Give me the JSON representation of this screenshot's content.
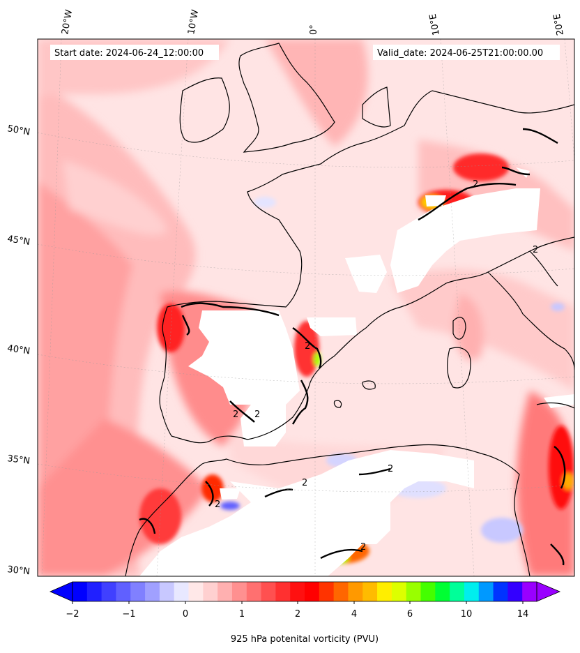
{
  "header": {
    "start_date": "Start date: 2024-06-24_12:00:00",
    "valid_date": "Valid_date: 2024-06-25T21:00:00.00"
  },
  "map": {
    "lon_labels": [
      "20°W",
      "10°W",
      "0°",
      "10°E",
      "20°E"
    ],
    "lat_labels": [
      "50°N",
      "45°N",
      "40°N",
      "35°N",
      "30°N"
    ],
    "contour_label": "2"
  },
  "colorbar": {
    "tick_labels": [
      "−2",
      "−1",
      "0",
      "1",
      "2",
      "4",
      "6",
      "10",
      "14"
    ],
    "title": "925 hPa potenital vorticity (PVU)",
    "colors": [
      "#0000ff",
      "#2020ff",
      "#4040ff",
      "#6060ff",
      "#8080ff",
      "#a0a0ff",
      "#c8c8ff",
      "#e8e8ff",
      "#ffe8e8",
      "#ffd0d0",
      "#ffb0b0",
      "#ff9090",
      "#ff7070",
      "#ff5050",
      "#ff3030",
      "#ff1010",
      "#ff0000",
      "#ff3300",
      "#ff6600",
      "#ff9900",
      "#ffbb00",
      "#ffee00",
      "#ddff00",
      "#99ff00",
      "#44ff00",
      "#00ff33",
      "#00ff99",
      "#00eeee",
      "#0099ff",
      "#0033ff",
      "#3300ff",
      "#9900ff"
    ]
  }
}
